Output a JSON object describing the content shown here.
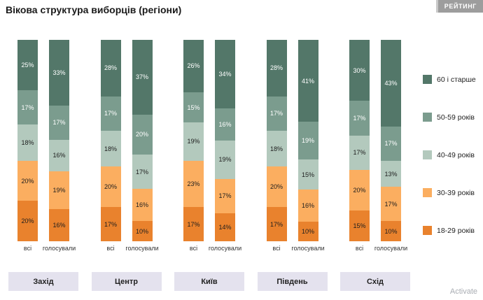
{
  "header": {
    "title": "Вікова структура виборців (регіони)",
    "logo": "РЕЙТИНГ"
  },
  "watermark": "Activate",
  "chart_data": {
    "type": "bar",
    "stacked": true,
    "unit": "%",
    "ylim": [
      0,
      100
    ],
    "legend_position": "right",
    "age_groups_bottom_to_top": [
      "18-29 років",
      "30-39 років",
      "40-49 років",
      "50-59 років",
      "60 і старше"
    ],
    "colors_bottom_to_top": [
      "#e9822d",
      "#fbae60",
      "#b3c9bd",
      "#7b9c8e",
      "#537769"
    ],
    "legend": [
      {
        "label": "60 і старше",
        "color": "#537769"
      },
      {
        "label": "50-59 років",
        "color": "#7b9c8e"
      },
      {
        "label": "40-49 років",
        "color": "#b3c9bd"
      },
      {
        "label": "30-39 років",
        "color": "#fbae60"
      },
      {
        "label": "18-29 років",
        "color": "#e9822d"
      }
    ],
    "regions": [
      {
        "name": "Захід",
        "bars": [
          {
            "label": "всі",
            "values": [
              20,
              20,
              18,
              17,
              25
            ]
          },
          {
            "label": "голосували",
            "values": [
              16,
              19,
              16,
              17,
              33
            ]
          }
        ]
      },
      {
        "name": "Центр",
        "bars": [
          {
            "label": "всі",
            "values": [
              17,
              20,
              18,
              17,
              28
            ]
          },
          {
            "label": "голосували",
            "values": [
              10,
              16,
              17,
              20,
              37
            ]
          }
        ]
      },
      {
        "name": "Київ",
        "bars": [
          {
            "label": "всі",
            "values": [
              17,
              23,
              19,
              15,
              26
            ]
          },
          {
            "label": "голосували",
            "values": [
              14,
              17,
              19,
              16,
              34
            ]
          }
        ]
      },
      {
        "name": "Південь",
        "bars": [
          {
            "label": "всі",
            "values": [
              17,
              20,
              18,
              17,
              28
            ]
          },
          {
            "label": "голосували",
            "values": [
              10,
              16,
              15,
              19,
              41
            ]
          }
        ]
      },
      {
        "name": "Схід",
        "bars": [
          {
            "label": "всі",
            "values": [
              15,
              20,
              17,
              17,
              30
            ]
          },
          {
            "label": "голосували",
            "values": [
              10,
              17,
              13,
              17,
              43
            ]
          }
        ]
      }
    ]
  }
}
